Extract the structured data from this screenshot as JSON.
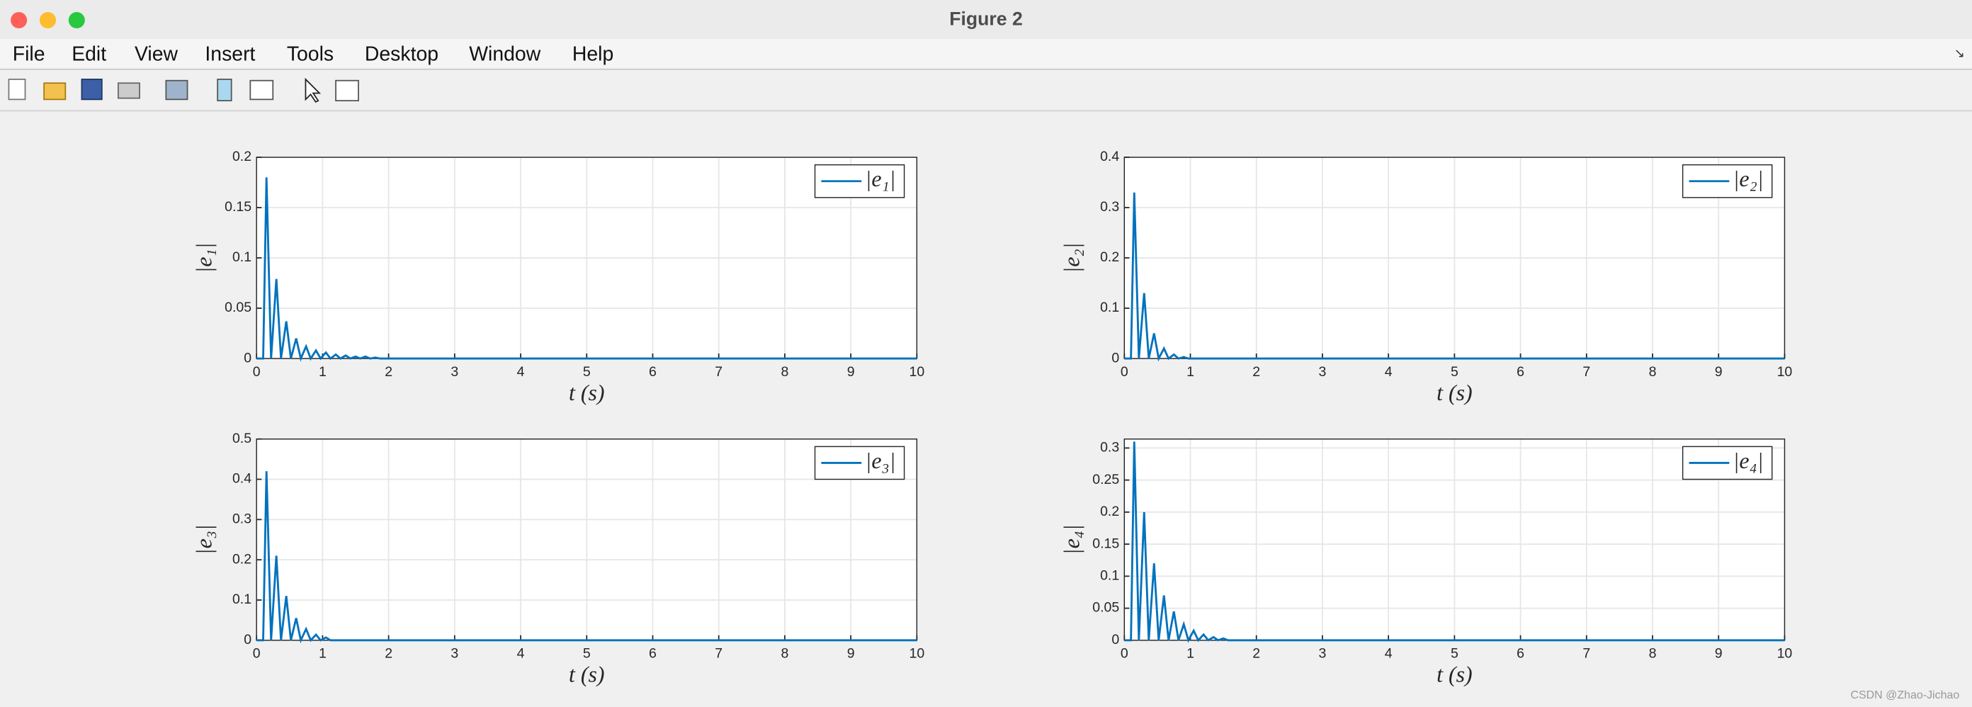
{
  "window_title": "Figure 2",
  "menu": [
    "File",
    "Edit",
    "View",
    "Insert",
    "Tools",
    "Desktop",
    "Window",
    "Help"
  ],
  "watermark": "CSDN @Zhao-Jichao",
  "chart_data": [
    {
      "type": "line",
      "xlabel": "t (s)",
      "ylabel": "|e₁|",
      "xlim": [
        0,
        10
      ],
      "ylim": [
        0,
        0.2
      ],
      "xticks": [
        0,
        1,
        2,
        3,
        4,
        5,
        6,
        7,
        8,
        9,
        10
      ],
      "yticks": [
        0,
        0.05,
        0.1,
        0.15,
        0.2
      ],
      "grid": true,
      "legend": "top-right",
      "x": [
        0,
        0.1,
        0.15,
        0.22,
        0.3,
        0.37,
        0.45,
        0.52,
        0.6,
        0.67,
        0.75,
        0.82,
        0.9,
        0.97,
        1.05,
        1.12,
        1.2,
        1.27,
        1.35,
        1.42,
        1.5,
        1.57,
        1.65,
        1.72,
        1.8,
        1.87,
        10
      ],
      "series": [
        {
          "name": "|e₁|",
          "color": "#0072bd",
          "values": [
            0,
            0,
            0.18,
            0,
            0.079,
            0,
            0.037,
            0,
            0.02,
            0,
            0.012,
            0,
            0.008,
            0,
            0.006,
            0,
            0.004,
            0,
            0.003,
            0,
            0.002,
            0,
            0.002,
            0,
            0.001,
            0,
            0
          ]
        }
      ]
    },
    {
      "type": "line",
      "xlabel": "t (s)",
      "ylabel": "|e₂|",
      "xlim": [
        0,
        10
      ],
      "ylim": [
        0,
        0.4
      ],
      "xticks": [
        0,
        1,
        2,
        3,
        4,
        5,
        6,
        7,
        8,
        9,
        10
      ],
      "yticks": [
        0,
        0.1,
        0.2,
        0.3,
        0.4
      ],
      "grid": true,
      "legend": "top-right",
      "x": [
        0,
        0.1,
        0.15,
        0.22,
        0.3,
        0.37,
        0.45,
        0.52,
        0.6,
        0.67,
        0.75,
        0.82,
        0.9,
        0.97,
        10
      ],
      "series": [
        {
          "name": "|e₂|",
          "color": "#0072bd",
          "values": [
            0,
            0,
            0.33,
            0,
            0.13,
            0,
            0.05,
            0,
            0.02,
            0,
            0.008,
            0,
            0.003,
            0,
            0
          ]
        }
      ]
    },
    {
      "type": "line",
      "xlabel": "t (s)",
      "ylabel": "|e₃|",
      "xlim": [
        0,
        10
      ],
      "ylim": [
        0,
        0.5
      ],
      "xticks": [
        0,
        1,
        2,
        3,
        4,
        5,
        6,
        7,
        8,
        9,
        10
      ],
      "yticks": [
        0,
        0.1,
        0.2,
        0.3,
        0.4,
        0.5
      ],
      "grid": true,
      "legend": "top-right",
      "x": [
        0,
        0.1,
        0.15,
        0.22,
        0.3,
        0.37,
        0.45,
        0.52,
        0.6,
        0.67,
        0.75,
        0.82,
        0.9,
        0.97,
        1.05,
        1.12,
        10
      ],
      "series": [
        {
          "name": "|e₃|",
          "color": "#0072bd",
          "values": [
            0,
            0,
            0.42,
            0,
            0.21,
            0,
            0.11,
            0,
            0.055,
            0,
            0.028,
            0,
            0.014,
            0,
            0.007,
            0,
            0
          ]
        }
      ]
    },
    {
      "type": "line",
      "xlabel": "t (s)",
      "ylabel": "|e₄|",
      "xlim": [
        0,
        10
      ],
      "ylim": [
        0,
        0.314
      ],
      "xticks": [
        0,
        1,
        2,
        3,
        4,
        5,
        6,
        7,
        8,
        9,
        10
      ],
      "yticks": [
        0,
        0.05,
        0.1,
        0.15,
        0.2,
        0.25,
        0.3
      ],
      "grid": true,
      "legend": "top-right",
      "x": [
        0,
        0.1,
        0.15,
        0.22,
        0.3,
        0.37,
        0.45,
        0.52,
        0.6,
        0.67,
        0.75,
        0.82,
        0.9,
        0.97,
        1.05,
        1.12,
        1.2,
        1.27,
        1.35,
        1.42,
        1.5,
        1.57,
        10
      ],
      "series": [
        {
          "name": "|e₄|",
          "color": "#0072bd",
          "values": [
            0,
            0,
            0.31,
            0,
            0.2,
            0,
            0.12,
            0,
            0.07,
            0,
            0.045,
            0,
            0.025,
            0,
            0.015,
            0,
            0.009,
            0,
            0.005,
            0,
            0.003,
            0,
            0
          ]
        }
      ]
    }
  ]
}
